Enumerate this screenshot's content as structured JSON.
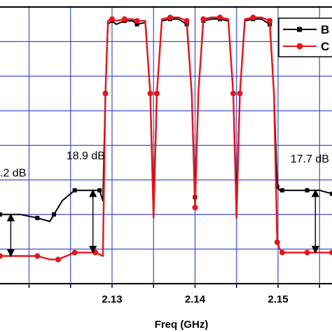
{
  "chart_data": {
    "type": "line",
    "xlabel": "Freq (GHz)",
    "ylabel": "",
    "title": "",
    "x_ticks": [
      "2.13",
      "2.14",
      "2.15"
    ],
    "xlim": [
      2.1165,
      2.1565
    ],
    "ylim": [
      -75,
      5
    ],
    "grid": true,
    "legend_position": "top-right",
    "colors": {
      "series_1": "#000000",
      "series_2": "#e8141b",
      "grid": "#3a4ec8"
    },
    "series": [
      {
        "name": "B",
        "x": [
          2.1165,
          2.119,
          2.121,
          2.1225,
          2.123,
          2.124,
          2.1255,
          2.127,
          2.1285,
          2.1289,
          2.1292,
          2.1295,
          2.13,
          2.1305,
          2.1315,
          2.1325,
          2.133,
          2.134,
          2.1346,
          2.135,
          2.1354,
          2.136,
          2.137,
          2.138,
          2.139,
          2.1396,
          2.14,
          2.1404,
          2.141,
          2.142,
          2.143,
          2.144,
          2.1446,
          2.145,
          2.1454,
          2.146,
          2.147,
          2.148,
          2.149,
          2.1495,
          2.1499,
          2.1502,
          2.1505,
          2.152,
          2.1535,
          2.155,
          2.1565
        ],
        "y": [
          -55,
          -55,
          -56,
          -57,
          -55,
          -51,
          -48,
          -48,
          -48,
          -51,
          -20,
          0,
          1,
          0,
          1,
          1,
          0,
          0.5,
          -20,
          -52,
          -20,
          1,
          1.5,
          1.5,
          0,
          -20,
          -50,
          -20,
          1,
          1.5,
          1.5,
          1,
          -20,
          -51,
          -20,
          1,
          1.5,
          1.5,
          0,
          -20,
          -47,
          -48,
          -48,
          -48,
          -48,
          -48,
          -49
        ]
      },
      {
        "name": "C",
        "x": [
          2.1165,
          2.119,
          2.121,
          2.1225,
          2.1235,
          2.1245,
          2.1255,
          2.1265,
          2.128,
          2.1289,
          2.1292,
          2.1295,
          2.13,
          2.1305,
          2.1315,
          2.1325,
          2.133,
          2.134,
          2.1346,
          2.135,
          2.1354,
          2.136,
          2.137,
          2.138,
          2.139,
          2.1396,
          2.14,
          2.1404,
          2.141,
          2.142,
          2.143,
          2.144,
          2.1446,
          2.145,
          2.1454,
          2.146,
          2.147,
          2.148,
          2.149,
          2.1495,
          2.1499,
          2.1502,
          2.1505,
          2.152,
          2.1535,
          2.155,
          2.1565
        ],
        "y": [
          -67,
          -67,
          -67,
          -68,
          -68,
          -67,
          -66,
          -66,
          -66,
          -67,
          -20,
          1,
          1.5,
          1,
          1.5,
          1.5,
          1,
          1,
          -20,
          -56,
          -20,
          1.5,
          2,
          2,
          1,
          -20,
          -53,
          -20,
          1.5,
          2,
          2,
          1.5,
          -20,
          -56,
          -20,
          1.5,
          2,
          2,
          1,
          -20,
          -63,
          -65,
          -66,
          -66,
          -66,
          -66,
          -66
        ]
      }
    ],
    "annotations": [
      {
        "text": ".2 dB",
        "x": 2.1165,
        "y": -44
      },
      {
        "text": "18.9 dB",
        "x": 2.1245,
        "y": -39
      },
      {
        "text": "17.7 dB",
        "x": 2.1515,
        "y": -40
      }
    ],
    "arrows": [
      {
        "x": 2.1178,
        "y_from": -55,
        "y_to": -67
      },
      {
        "x": 2.1277,
        "y_from": -48,
        "y_to": -66
      },
      {
        "x": 2.1545,
        "y_from": -48,
        "y_to": -66
      }
    ]
  }
}
